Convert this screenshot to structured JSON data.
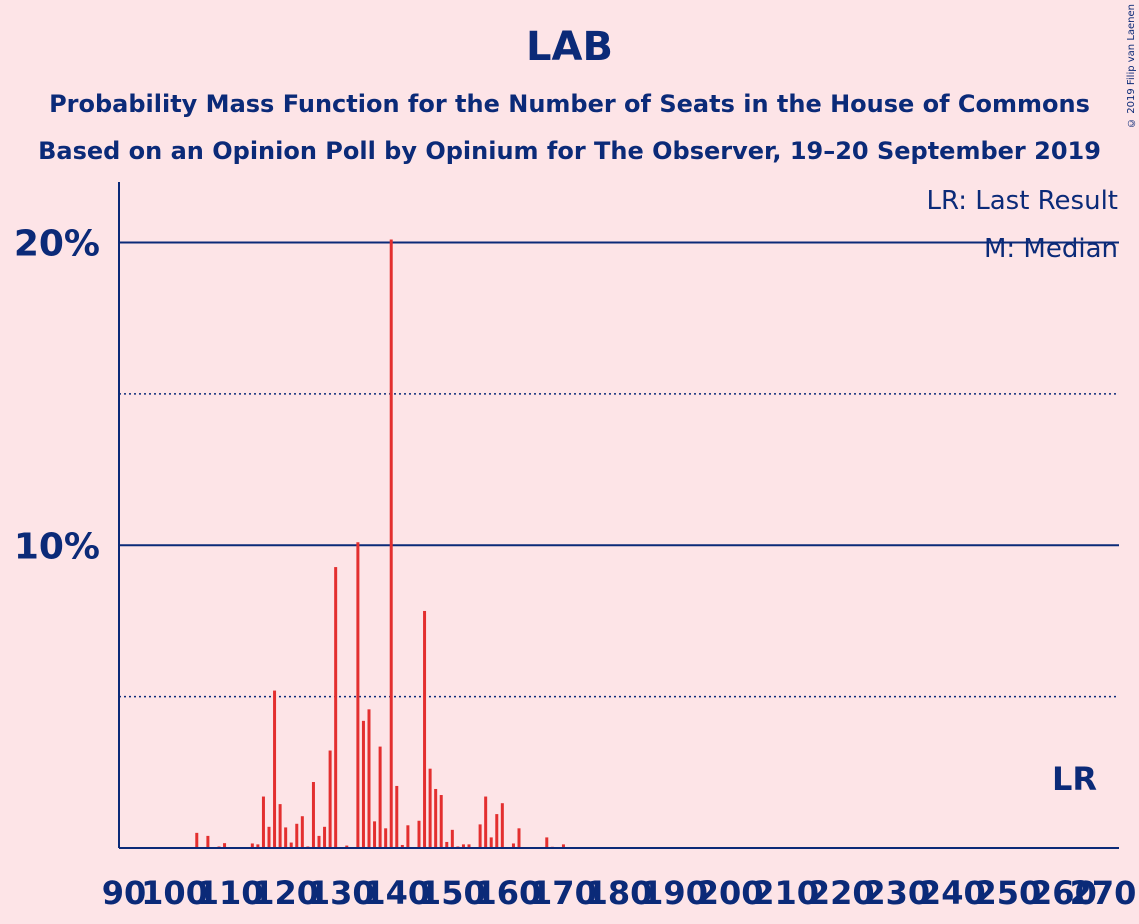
{
  "title": "LAB",
  "subtitle1": "Probability Mass Function for the Number of Seats in the House of Commons",
  "subtitle2": "Based on an Opinion Poll by Opinium for The Observer, 19–20 September 2019",
  "copyright": "© 2019 Filip van Laenen",
  "colors": {
    "background": "#fde4e7",
    "text": "#0b2a78",
    "bar": "#e32f2f",
    "median_bar": "#fde4e7"
  },
  "legend": {
    "lr": "LR: Last Result",
    "median": "M: Median"
  },
  "lr_marker": {
    "label": "LR",
    "x": 262
  },
  "chart_data": {
    "type": "bar",
    "title": "LAB",
    "xlim": [
      90,
      270
    ],
    "ylim": [
      0,
      0.22
    ],
    "x_ticks": [
      90,
      100,
      110,
      120,
      130,
      140,
      150,
      160,
      170,
      180,
      190,
      200,
      210,
      220,
      230,
      240,
      250,
      260,
      270
    ],
    "x_tick_labels": [
      "90",
      "100",
      "110",
      "120",
      "130",
      "140",
      "150",
      "160",
      "170",
      "180",
      "190",
      "200",
      "210",
      "220",
      "230",
      "240",
      "250",
      "260",
      "270"
    ],
    "y_ticks": [
      0.1,
      0.2
    ],
    "y_tick_labels": [
      "10%",
      "20%"
    ],
    "y_dotted_lines": [
      0.05,
      0.15
    ],
    "median": 137,
    "last_result": 262,
    "points": [
      {
        "x": 97,
        "y": 0.0001
      },
      {
        "x": 98,
        "y": 0.0001
      },
      {
        "x": 100,
        "y": 0.0001
      },
      {
        "x": 102,
        "y": 0.0002
      },
      {
        "x": 104,
        "y": 0.005
      },
      {
        "x": 106,
        "y": 0.004
      },
      {
        "x": 108,
        "y": 0.0005
      },
      {
        "x": 109,
        "y": 0.0016
      },
      {
        "x": 111,
        "y": 0.0002
      },
      {
        "x": 113,
        "y": 0.0003
      },
      {
        "x": 114,
        "y": 0.0015
      },
      {
        "x": 115,
        "y": 0.0012
      },
      {
        "x": 116,
        "y": 0.017
      },
      {
        "x": 117,
        "y": 0.007
      },
      {
        "x": 118,
        "y": 0.052
      },
      {
        "x": 119,
        "y": 0.0145
      },
      {
        "x": 120,
        "y": 0.0068
      },
      {
        "x": 121,
        "y": 0.0018
      },
      {
        "x": 122,
        "y": 0.008
      },
      {
        "x": 123,
        "y": 0.0105
      },
      {
        "x": 124,
        "y": 0.0005
      },
      {
        "x": 125,
        "y": 0.0218
      },
      {
        "x": 126,
        "y": 0.004
      },
      {
        "x": 127,
        "y": 0.007
      },
      {
        "x": 128,
        "y": 0.0322
      },
      {
        "x": 129,
        "y": 0.0928
      },
      {
        "x": 130,
        "y": 0.0003
      },
      {
        "x": 131,
        "y": 0.0008
      },
      {
        "x": 133,
        "y": 0.101
      },
      {
        "x": 134,
        "y": 0.042
      },
      {
        "x": 135,
        "y": 0.0458
      },
      {
        "x": 136,
        "y": 0.0088
      },
      {
        "x": 137,
        "y": 0.0335
      },
      {
        "x": 138,
        "y": 0.0065
      },
      {
        "x": 139,
        "y": 0.201
      },
      {
        "x": 140,
        "y": 0.0205
      },
      {
        "x": 141,
        "y": 0.001
      },
      {
        "x": 142,
        "y": 0.0075
      },
      {
        "x": 143,
        "y": 0.0003
      },
      {
        "x": 144,
        "y": 0.009
      },
      {
        "x": 145,
        "y": 0.0783
      },
      {
        "x": 146,
        "y": 0.0262
      },
      {
        "x": 147,
        "y": 0.0195
      },
      {
        "x": 148,
        "y": 0.0175
      },
      {
        "x": 149,
        "y": 0.002
      },
      {
        "x": 150,
        "y": 0.006
      },
      {
        "x": 151,
        "y": 0.0005
      },
      {
        "x": 152,
        "y": 0.0012
      },
      {
        "x": 153,
        "y": 0.0012
      },
      {
        "x": 154,
        "y": 0.0003
      },
      {
        "x": 155,
        "y": 0.0078
      },
      {
        "x": 156,
        "y": 0.017
      },
      {
        "x": 157,
        "y": 0.0035
      },
      {
        "x": 158,
        "y": 0.0112
      },
      {
        "x": 159,
        "y": 0.0148
      },
      {
        "x": 160,
        "y": 0.0003
      },
      {
        "x": 161,
        "y": 0.0015
      },
      {
        "x": 162,
        "y": 0.0065
      },
      {
        "x": 163,
        "y": 0.0003
      },
      {
        "x": 164,
        "y": 0.0002
      },
      {
        "x": 165,
        "y": 0.0002
      },
      {
        "x": 167,
        "y": 0.0035
      },
      {
        "x": 168,
        "y": 0.0004
      },
      {
        "x": 169,
        "y": 0.0001
      },
      {
        "x": 170,
        "y": 0.0012
      },
      {
        "x": 171,
        "y": 0.0001
      },
      {
        "x": 172,
        "y": 0.0001
      }
    ]
  }
}
